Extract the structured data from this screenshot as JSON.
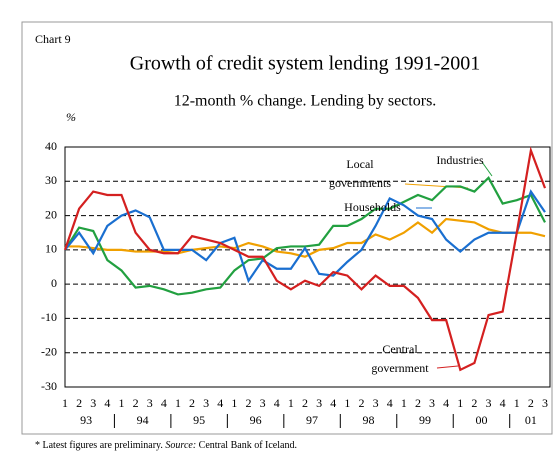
{
  "chart_data": {
    "type": "line",
    "label": "Chart 9",
    "title": "Growth of credit system lending 1991-2001",
    "subtitle": "12-month % change. Lending by sectors.",
    "y_label": "%",
    "categories": [
      "1",
      "2",
      "3",
      "4",
      "1",
      "2",
      "3",
      "4",
      "1",
      "2",
      "3",
      "4",
      "1",
      "2",
      "3",
      "4",
      "1",
      "2",
      "3",
      "4",
      "1",
      "2",
      "3",
      "4",
      "1",
      "2",
      "3",
      "4",
      "1",
      "2",
      "3",
      "4",
      "1",
      "2",
      "3"
    ],
    "year_labels": [
      "93",
      "94",
      "95",
      "96",
      "97",
      "98",
      "99",
      "00",
      "01"
    ],
    "ylim": [
      -30,
      40
    ],
    "yticks": [
      -30,
      -20,
      -10,
      0,
      10,
      20,
      30,
      40
    ],
    "grid": true,
    "series": [
      {
        "name": "Local governments",
        "color": "#f0a000",
        "values": [
          11,
          11,
          10.5,
          10,
          10,
          9.5,
          9.5,
          9.5,
          9,
          10,
          10.5,
          11,
          10.5,
          12,
          11,
          9.5,
          9,
          8,
          10,
          10.5,
          12,
          12,
          14.5,
          13,
          15,
          18,
          15,
          19,
          18.5,
          18,
          16,
          15,
          15,
          15,
          14
        ]
      },
      {
        "name": "Industries",
        "color": "#22a040",
        "values": [
          10,
          16.5,
          15.5,
          7,
          4,
          -1,
          -0.5,
          -1.5,
          -3,
          -2.5,
          -1.5,
          -1,
          4,
          7,
          7.5,
          10.5,
          11,
          11,
          11.5,
          17,
          17,
          19,
          22,
          22,
          24,
          26,
          24.5,
          28.5,
          28.5,
          27,
          31,
          23.5,
          24.5,
          26,
          18
        ]
      },
      {
        "name": "Households",
        "color": "#1a6fd0",
        "values": [
          10,
          15,
          9,
          17,
          20,
          21.5,
          19.5,
          10,
          10,
          10,
          7,
          12,
          13.5,
          1,
          7,
          4.5,
          4.5,
          10.5,
          3,
          2.5,
          6.5,
          10,
          17,
          25,
          23,
          20,
          19,
          13,
          9.5,
          13,
          15,
          15,
          15,
          27,
          21
        ]
      },
      {
        "name": "Central government",
        "color": "#d42020",
        "values": [
          10,
          22,
          27,
          26,
          26,
          15,
          10,
          9,
          9,
          14,
          13,
          12,
          10,
          8,
          8,
          1,
          -1.5,
          1,
          -0.5,
          3.5,
          2.5,
          -1.5,
          2.5,
          -0.5,
          -0.5,
          -4,
          -10.5,
          -10.5,
          -25,
          -23,
          -9,
          -8,
          15,
          39,
          28
        ]
      }
    ],
    "footnote": "* Latest figures are preliminary.",
    "source_label": "Source:",
    "source": "Central Bank of Iceland."
  }
}
